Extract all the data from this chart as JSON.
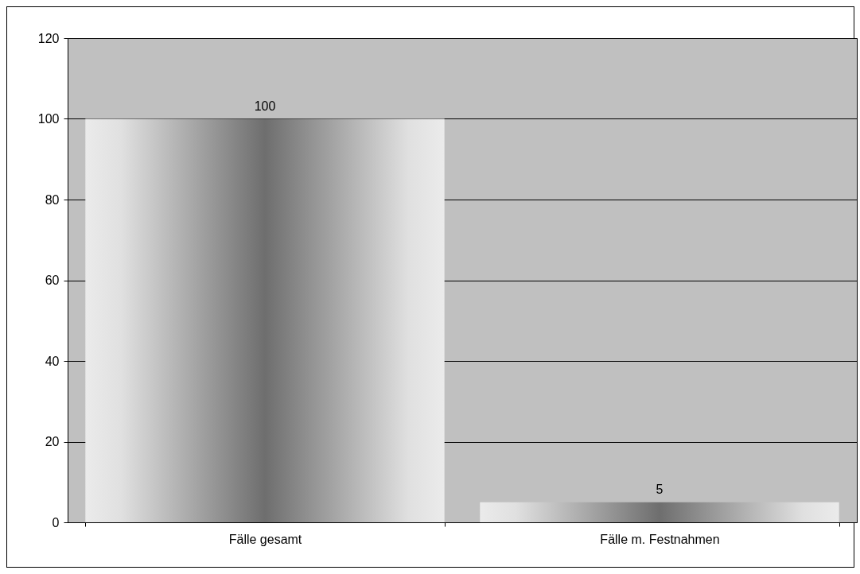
{
  "chart_data": {
    "type": "bar",
    "categories": [
      "Fälle gesamt",
      "Fälle m. Festnahmen"
    ],
    "values": [
      100,
      5
    ],
    "color": "#6e6e6e",
    "ylim": [
      0,
      120
    ],
    "yticks": [
      0,
      20,
      40,
      60,
      80,
      100,
      120
    ],
    "grid": "y",
    "data_labels": true
  }
}
